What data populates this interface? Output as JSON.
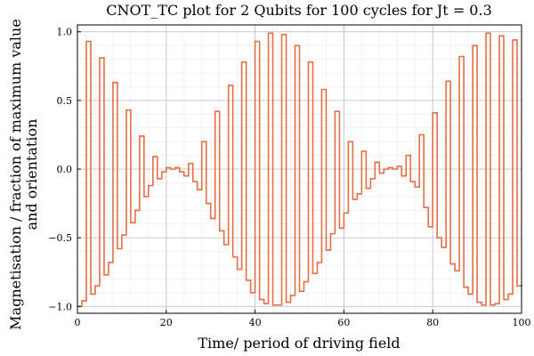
{
  "chart_data": {
    "type": "line",
    "step": true,
    "title": "CNOT_TC plot for 2 Qubits for 100 cycles for Jt = 0.3",
    "xlabel": "Time/ period of driving field",
    "ylabel_lines": [
      "Magnetisation / fraction of maximum value",
      "and orientation"
    ],
    "xlim": [
      0,
      100
    ],
    "ylim": [
      -1.05,
      1.05
    ],
    "xticks": [
      0,
      20,
      40,
      60,
      80,
      100
    ],
    "yticks": [
      -1.0,
      -0.5,
      0.0,
      0.5,
      1.0
    ],
    "xtick_labels": [
      "0",
      "20",
      "40",
      "60",
      "80",
      "100"
    ],
    "ytick_labels": [
      "−1.0",
      "−0.5",
      "0.0",
      "0.5",
      "1.0"
    ],
    "grid": true,
    "minor_grid": true,
    "legend": "none",
    "series_color": "#e26f46",
    "series": [
      {
        "x": [
          0,
          1,
          2,
          3,
          4,
          5,
          6,
          7,
          8,
          9,
          10,
          11,
          12,
          13,
          14,
          15,
          16,
          17,
          18,
          19,
          20,
          21,
          22,
          23,
          24,
          25,
          26,
          27,
          28,
          29,
          30,
          31,
          32,
          33,
          34,
          35,
          36,
          37,
          38,
          39,
          40,
          41,
          42,
          43,
          44,
          45,
          46,
          47,
          48,
          49,
          50,
          51,
          52,
          53,
          54,
          55,
          56,
          57,
          58,
          59,
          60,
          61,
          62,
          63,
          64,
          65,
          66,
          67,
          68,
          69,
          70,
          71,
          72,
          73,
          74,
          75,
          76,
          77,
          78,
          79,
          80,
          81,
          82,
          83,
          84,
          85,
          86,
          87,
          88,
          89,
          90,
          91,
          92,
          93,
          94,
          95,
          96,
          97,
          98,
          99,
          100
        ],
        "values": [
          -1.0,
          -0.96,
          0.93,
          -0.91,
          -0.85,
          0.81,
          -0.77,
          -0.68,
          0.63,
          -0.58,
          -0.48,
          0.43,
          -0.39,
          -0.3,
          0.24,
          -0.2,
          -0.12,
          0.09,
          -0.07,
          -0.02,
          0.01,
          0.0,
          0.01,
          -0.02,
          -0.05,
          0.04,
          -0.09,
          -0.15,
          0.2,
          -0.25,
          -0.36,
          0.42,
          -0.45,
          -0.55,
          0.61,
          -0.64,
          -0.73,
          0.78,
          -0.81,
          -0.9,
          0.93,
          -0.95,
          -0.98,
          0.99,
          -0.99,
          -0.99,
          0.98,
          -0.97,
          -0.92,
          0.9,
          -0.89,
          -0.82,
          0.78,
          -0.76,
          -0.68,
          0.58,
          -0.59,
          -0.47,
          0.42,
          -0.43,
          -0.32,
          0.2,
          -0.22,
          -0.18,
          0.13,
          -0.14,
          -0.07,
          0.05,
          -0.03,
          0.0,
          0.01,
          0.0,
          0.02,
          -0.05,
          0.1,
          -0.09,
          -0.13,
          0.25,
          -0.28,
          -0.42,
          0.41,
          -0.5,
          -0.57,
          0.64,
          -0.69,
          -0.74,
          0.82,
          -0.86,
          -0.91,
          0.9,
          -0.97,
          -0.99,
          0.99,
          -0.99,
          -0.98,
          0.97,
          -0.95,
          -0.91,
          0.94,
          -0.85,
          -0.84
        ]
      }
    ]
  }
}
